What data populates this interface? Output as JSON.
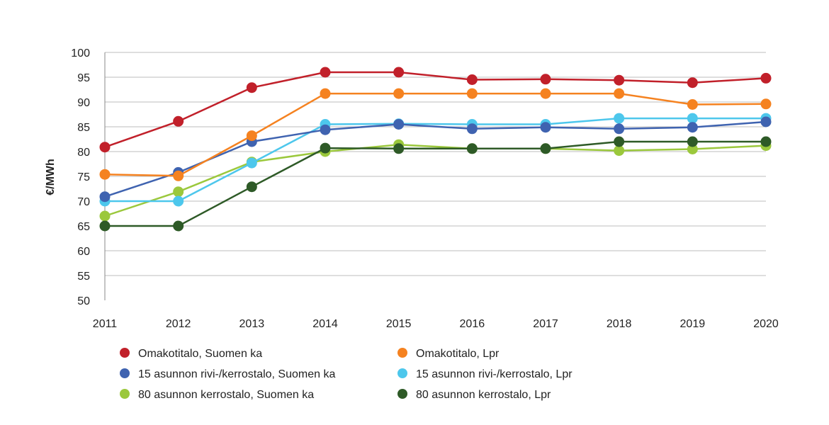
{
  "chart_data": {
    "type": "line",
    "title": "",
    "xlabel": "",
    "ylabel": "€/MWh",
    "ylim": [
      50,
      100
    ],
    "yticks": [
      50,
      55,
      60,
      65,
      70,
      75,
      80,
      85,
      90,
      95,
      100
    ],
    "grid": true,
    "legend": "bottom",
    "categories": [
      "2011",
      "2012",
      "2013",
      "2014",
      "2015",
      "2016",
      "2017",
      "2018",
      "2019",
      "2020"
    ],
    "series": [
      {
        "name": "Omakotitalo, Suomen ka",
        "color": "#c1202a",
        "values": [
          80.9,
          86.1,
          92.9,
          96.0,
          96.0,
          94.5,
          94.6,
          94.4,
          93.9,
          94.8
        ]
      },
      {
        "name": "Omakotitalo, Lpr",
        "color": "#f58220",
        "values": [
          75.4,
          75.1,
          83.2,
          91.7,
          91.7,
          91.7,
          91.7,
          91.7,
          89.5,
          89.6
        ]
      },
      {
        "name": "15 asunnon rivi-/kerrostalo, Suomen ka",
        "color": "#3f63b0",
        "values": [
          70.9,
          75.8,
          82.0,
          84.4,
          85.5,
          84.6,
          84.9,
          84.6,
          84.9,
          86.0
        ]
      },
      {
        "name": "15 asunnon rivi-/kerrostalo, Lpr",
        "color": "#4dc7ec",
        "values": [
          70.0,
          70.0,
          77.7,
          85.5,
          85.6,
          85.5,
          85.5,
          86.7,
          86.7,
          86.7
        ]
      },
      {
        "name": "80 asunnon kerrostalo, Suomen ka",
        "color": "#9bc83c",
        "values": [
          67.0,
          71.9,
          77.9,
          80.0,
          81.4,
          80.6,
          80.6,
          80.2,
          80.5,
          81.2
        ]
      },
      {
        "name": "80 asunnon kerrostalo, Lpr",
        "color": "#2e5a27",
        "values": [
          65.0,
          65.0,
          72.9,
          80.7,
          80.6,
          80.6,
          80.6,
          82.0,
          82.0,
          82.0
        ]
      }
    ]
  }
}
